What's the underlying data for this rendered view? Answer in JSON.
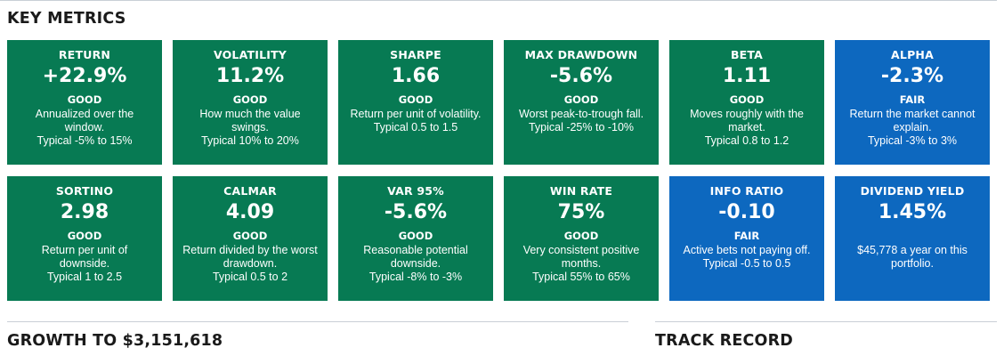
{
  "key_metrics": {
    "title": "KEY METRICS",
    "rows": [
      [
        {
          "label": "RETURN",
          "value": "+22.9%",
          "rating": "GOOD",
          "status": "good",
          "desc": "Annualized over the window.",
          "typical": "Typical -5% to 15%"
        },
        {
          "label": "VOLATILITY",
          "value": "11.2%",
          "rating": "GOOD",
          "status": "good",
          "desc": "How much the value swings.",
          "typical": "Typical 10% to 20%"
        },
        {
          "label": "SHARPE",
          "value": "1.66",
          "rating": "GOOD",
          "status": "good",
          "desc": "Return per unit of volatility.",
          "typical": "Typical 0.5 to 1.5"
        },
        {
          "label": "MAX DRAWDOWN",
          "value": "-5.6%",
          "rating": "GOOD",
          "status": "good",
          "desc": "Worst peak-to-trough fall.",
          "typical": "Typical -25% to -10%"
        },
        {
          "label": "BETA",
          "value": "1.11",
          "rating": "GOOD",
          "status": "good",
          "desc": "Moves roughly with the market.",
          "typical": "Typical 0.8 to 1.2"
        },
        {
          "label": "ALPHA",
          "value": "-2.3%",
          "rating": "FAIR",
          "status": "fair",
          "desc": "Return the market cannot explain.",
          "typical": "Typical -3% to 3%"
        }
      ],
      [
        {
          "label": "SORTINO",
          "value": "2.98",
          "rating": "GOOD",
          "status": "good",
          "desc": "Return per unit of downside.",
          "typical": "Typical 1 to 2.5"
        },
        {
          "label": "CALMAR",
          "value": "4.09",
          "rating": "GOOD",
          "status": "good",
          "desc": "Return divided by the worst drawdown.",
          "typical": "Typical 0.5 to 2"
        },
        {
          "label": "VAR 95%",
          "value": "-5.6%",
          "rating": "GOOD",
          "status": "good",
          "desc": "Reasonable potential downside.",
          "typical": "Typical -8% to -3%"
        },
        {
          "label": "WIN RATE",
          "value": "75%",
          "rating": "GOOD",
          "status": "good",
          "desc": "Very consistent positive months.",
          "typical": "Typical 55% to 65%"
        },
        {
          "label": "INFO RATIO",
          "value": "-0.10",
          "rating": "FAIR",
          "status": "fair",
          "desc": "Active bets not paying off.",
          "typical": "Typical -0.5 to 0.5"
        },
        {
          "label": "DIVIDEND YIELD",
          "value": "1.45%",
          "rating": "",
          "status": "fair",
          "desc": "$45,778 a year on this portfolio.",
          "typical": ""
        }
      ]
    ]
  },
  "growth": {
    "title": "GROWTH TO $3,151,618"
  },
  "track_record": {
    "title": "TRACK RECORD"
  },
  "colors": {
    "good": "#077a53",
    "fair": "#0d68bf",
    "rule": "#c9cfd6"
  }
}
